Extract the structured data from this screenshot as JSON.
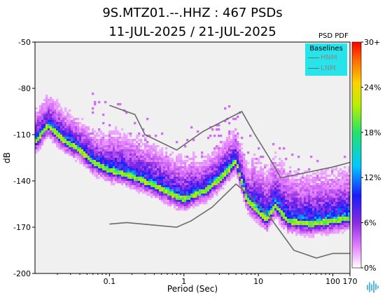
{
  "title_line1": "9S.MTZ01.--.HHZ : 467 PSDs",
  "title_line2": "11-JUL-2025 / 21-JUL-2025",
  "colorbar_label": "PSD PDF",
  "legend": {
    "title": "Baselines",
    "items": [
      "HNM",
      "LNM"
    ]
  },
  "colors": {
    "background": "#f0f0f0",
    "baseline": "#6a6a6a",
    "legend_bg": "#27e3ea"
  },
  "chart_data": {
    "type": "heatmap",
    "xlabel": "Period (Sec)",
    "ylabel": "dB",
    "x_scale": "log",
    "xlim": [
      0.01,
      170
    ],
    "ylim": [
      -200,
      -50
    ],
    "x_ticks": [
      0.1,
      1,
      10,
      100,
      170
    ],
    "x_tick_labels": [
      "0.1",
      "1",
      "10",
      "100",
      "170"
    ],
    "y_ticks": [
      -50,
      -80,
      -110,
      -140,
      -170,
      -200
    ],
    "y_tick_labels": [
      "-50",
      "-80",
      "-110",
      "-140",
      "-170",
      "-200"
    ],
    "colorbar": {
      "label": "PSD PDF",
      "ticks": [
        "0%",
        "6%",
        "12%",
        "18%",
        "24%",
        "30+"
      ],
      "range": [
        0,
        30
      ]
    },
    "mode_curve": [
      [
        0.01,
        -115
      ],
      [
        0.015,
        -104
      ],
      [
        0.025,
        -114
      ],
      [
        0.04,
        -120
      ],
      [
        0.06,
        -128
      ],
      [
        0.1,
        -133
      ],
      [
        0.2,
        -137
      ],
      [
        0.4,
        -143
      ],
      [
        0.7,
        -149
      ],
      [
        1.0,
        -152
      ],
      [
        2.0,
        -146
      ],
      [
        3.0,
        -139
      ],
      [
        4.0,
        -133
      ],
      [
        5.0,
        -127
      ],
      [
        7.0,
        -152
      ],
      [
        10.0,
        -160
      ],
      [
        13.0,
        -165
      ],
      [
        17.0,
        -156
      ],
      [
        25.0,
        -166
      ],
      [
        50.0,
        -168
      ],
      [
        100.0,
        -166
      ],
      [
        170.0,
        -164
      ]
    ],
    "series": [
      {
        "name": "HNM",
        "x": [
          0.1,
          0.22,
          0.3,
          0.8,
          1.8,
          6.0,
          9.0,
          14.0,
          20.0,
          40.0,
          100.0,
          170.0
        ],
        "y": [
          -91,
          -97,
          -110,
          -120,
          -108,
          -95,
          -110,
          -125,
          -138,
          -135,
          -131,
          -128
        ]
      },
      {
        "name": "LNM",
        "x": [
          0.1,
          0.17,
          0.8,
          1.24,
          2.4,
          5.0,
          7.0,
          14.0,
          30.0,
          60.0,
          100.0,
          170.0
        ],
        "y": [
          -168,
          -167,
          -170,
          -166,
          -157,
          -142,
          -148,
          -163,
          -185,
          -190,
          -187,
          -187
        ]
      }
    ]
  }
}
